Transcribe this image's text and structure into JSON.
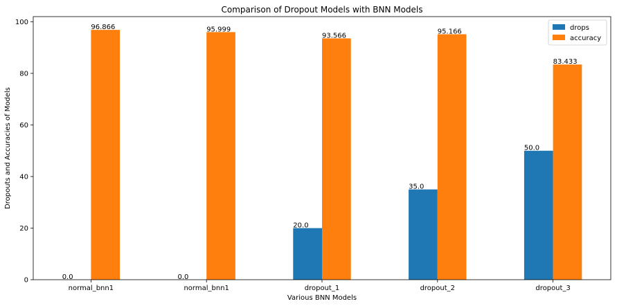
{
  "chart_data": {
    "type": "bar",
    "title": "Comparison of Dropout Models with BNN Models",
    "xlabel": "Various BNN Models",
    "ylabel": "Dropouts and Accuracies of Models",
    "categories": [
      "normal_bnn1",
      "normal_bnn1",
      "dropout_1",
      "dropout_2",
      "dropout_3"
    ],
    "series": [
      {
        "name": "drops",
        "color": "#1f77b4",
        "values": [
          0.0,
          0.0,
          20.0,
          35.0,
          50.0
        ],
        "labels": [
          "0.0",
          "0.0",
          "20.0",
          "35.0",
          "50.0"
        ]
      },
      {
        "name": "accuracy",
        "color": "#ff7f0e",
        "values": [
          96.866,
          95.999,
          93.566,
          95.166,
          83.433
        ],
        "labels": [
          "96.866",
          "95.999",
          "93.566",
          "95.166",
          "83.433"
        ]
      }
    ],
    "ylim": [
      0,
      102
    ],
    "yticks": [
      0,
      20,
      40,
      60,
      80,
      100
    ],
    "ytick_labels": [
      "0",
      "20",
      "40",
      "60",
      "80",
      "100"
    ],
    "grid": false,
    "legend_position": "top-right"
  }
}
